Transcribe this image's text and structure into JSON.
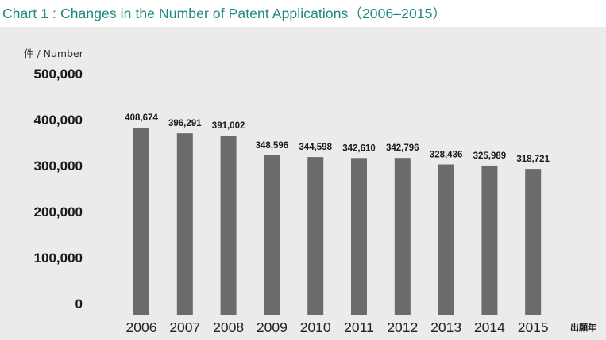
{
  "chart_data": {
    "type": "bar",
    "title": "Chart 1 : Changes in the Number of Patent Applications（2006–2015）",
    "ylabel": "件 / Number",
    "xlabel": "出願年",
    "categories": [
      "2006",
      "2007",
      "2008",
      "2009",
      "2010",
      "2011",
      "2012",
      "2013",
      "2014",
      "2015"
    ],
    "values": [
      408674,
      396291,
      391002,
      348596,
      344598,
      342610,
      342796,
      328436,
      325989,
      318721
    ],
    "value_labels": [
      "408,674",
      "396,291",
      "391,002",
      "348,596",
      "344,598",
      "342,610",
      "342,796",
      "328,436",
      "325,989",
      "318,721"
    ],
    "ylim": [
      0,
      500000
    ],
    "yticks": [
      0,
      100000,
      200000,
      300000,
      400000,
      500000
    ],
    "ytick_labels": [
      "0",
      "100,000",
      "200,000",
      "300,000",
      "400,000",
      "500,000"
    ],
    "grid": false,
    "legend": "none",
    "colors": {
      "bar": "#6b6b6d",
      "background": "#ebebeb",
      "title": "#1d8a7f"
    }
  }
}
